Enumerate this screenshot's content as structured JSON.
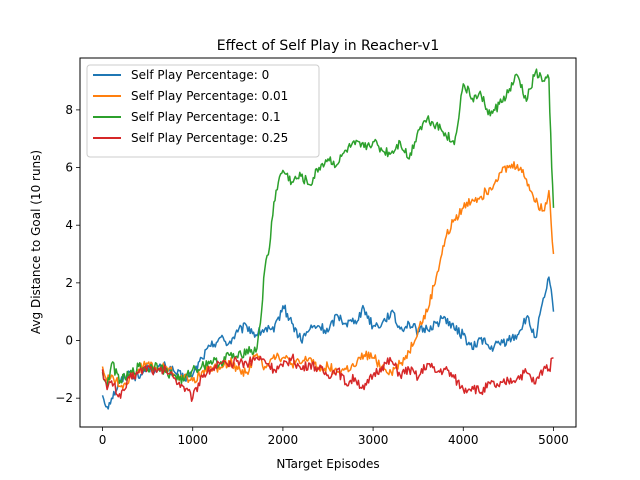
{
  "chart_data": {
    "type": "line",
    "title": "Effect of Self Play in Reacher-v1",
    "xlabel": "NTarget Episodes",
    "ylabel": "Avg Distance to Goal (10 runs)",
    "xlim": [
      -250,
      5250
    ],
    "ylim": [
      -3,
      9.8
    ],
    "xticks": [
      0,
      1000,
      2000,
      3000,
      4000,
      5000
    ],
    "yticks": [
      -2,
      0,
      2,
      4,
      6,
      8
    ],
    "grid": false,
    "legend_position": "upper-left",
    "series": [
      {
        "name": "Self Play Percentage: 0",
        "color": "#1f77b4",
        "x": [
          0,
          50,
          100,
          200,
          300,
          400,
          500,
          600,
          700,
          800,
          900,
          1000,
          1100,
          1200,
          1300,
          1400,
          1500,
          1600,
          1700,
          1800,
          1900,
          2000,
          2100,
          2200,
          2300,
          2400,
          2500,
          2600,
          2700,
          2800,
          2900,
          3000,
          3100,
          3200,
          3300,
          3400,
          3500,
          3600,
          3700,
          3800,
          3900,
          4000,
          4100,
          4200,
          4300,
          4400,
          4500,
          4600,
          4700,
          4800,
          4900,
          4950,
          5000
        ],
        "y": [
          -1.9,
          -2.3,
          -2.0,
          -1.4,
          -1.1,
          -1.3,
          -0.9,
          -1.0,
          -0.9,
          -1.1,
          -1.3,
          -1.2,
          -0.6,
          -0.2,
          0.1,
          -0.1,
          0.3,
          0.5,
          0.2,
          0.4,
          0.3,
          1.2,
          0.6,
          0.0,
          0.4,
          0.5,
          0.3,
          0.9,
          0.6,
          0.7,
          1.1,
          0.5,
          0.6,
          1.0,
          0.4,
          0.6,
          0.3,
          0.4,
          0.6,
          0.8,
          0.4,
          0.2,
          -0.3,
          0.1,
          -0.3,
          -0.1,
          0.0,
          0.2,
          0.8,
          0.1,
          1.5,
          2.2,
          1.0
        ]
      },
      {
        "name": "Self Play Percentage: 0.01",
        "color": "#ff7f0e",
        "x": [
          0,
          50,
          100,
          200,
          300,
          400,
          500,
          600,
          700,
          800,
          900,
          1000,
          1100,
          1200,
          1300,
          1400,
          1500,
          1600,
          1700,
          1800,
          1900,
          2000,
          2100,
          2200,
          2300,
          2400,
          2500,
          2600,
          2700,
          2800,
          2900,
          3000,
          3100,
          3200,
          3300,
          3400,
          3500,
          3600,
          3700,
          3800,
          3900,
          4000,
          4100,
          4200,
          4300,
          4400,
          4500,
          4600,
          4700,
          4800,
          4900,
          4950,
          5000
        ],
        "y": [
          -0.9,
          -1.4,
          -1.2,
          -1.6,
          -1.3,
          -1.0,
          -0.8,
          -1.0,
          -0.9,
          -1.2,
          -1.3,
          -1.4,
          -1.1,
          -0.9,
          -1.0,
          -0.7,
          -1.0,
          -1.1,
          -0.5,
          -0.9,
          -0.5,
          -0.6,
          -0.8,
          -0.8,
          -0.6,
          -1.0,
          -0.9,
          -1.1,
          -1.0,
          -0.9,
          -0.5,
          -0.6,
          -0.9,
          -1.1,
          -0.8,
          -0.4,
          0.4,
          1.0,
          2.2,
          3.5,
          4.2,
          4.6,
          4.9,
          5.0,
          5.3,
          5.8,
          6.0,
          6.1,
          5.6,
          4.8,
          4.5,
          5.2,
          3.0
        ]
      },
      {
        "name": "Self Play Percentage: 0.1",
        "color": "#2ca02c",
        "x": [
          0,
          50,
          100,
          200,
          300,
          400,
          500,
          600,
          700,
          800,
          900,
          1000,
          1100,
          1200,
          1300,
          1400,
          1500,
          1600,
          1700,
          1750,
          1800,
          1850,
          1900,
          1950,
          2000,
          2100,
          2200,
          2300,
          2400,
          2500,
          2600,
          2700,
          2800,
          2900,
          3000,
          3100,
          3200,
          3300,
          3400,
          3500,
          3600,
          3700,
          3800,
          3900,
          4000,
          4100,
          4200,
          4300,
          4400,
          4500,
          4600,
          4700,
          4800,
          4900,
          4950,
          4980,
          5000
        ],
        "y": [
          -1.1,
          -1.6,
          -0.8,
          -1.4,
          -1.2,
          -0.9,
          -1.0,
          -0.8,
          -1.1,
          -1.2,
          -1.4,
          -1.0,
          -0.9,
          -0.7,
          -0.8,
          -0.5,
          -0.6,
          -0.3,
          -0.4,
          0.6,
          2.5,
          3.2,
          4.8,
          5.5,
          5.9,
          5.5,
          5.7,
          5.4,
          6.0,
          6.3,
          6.1,
          6.6,
          6.8,
          6.7,
          6.9,
          6.6,
          6.5,
          6.9,
          6.3,
          7.3,
          7.7,
          7.5,
          7.2,
          6.8,
          8.9,
          8.4,
          8.5,
          7.8,
          8.2,
          8.6,
          9.2,
          8.3,
          9.3,
          9.0,
          9.1,
          6.0,
          4.6
        ]
      },
      {
        "name": "Self Play Percentage: 0.25",
        "color": "#d62728",
        "x": [
          0,
          50,
          100,
          200,
          300,
          400,
          500,
          600,
          700,
          800,
          900,
          1000,
          1100,
          1200,
          1300,
          1400,
          1500,
          1600,
          1700,
          1800,
          1900,
          2000,
          2100,
          2200,
          2300,
          2400,
          2500,
          2600,
          2700,
          2800,
          2900,
          3000,
          3100,
          3200,
          3300,
          3400,
          3500,
          3600,
          3700,
          3800,
          3900,
          4000,
          4100,
          4200,
          4300,
          4400,
          4500,
          4600,
          4700,
          4800,
          4900,
          4950,
          5000
        ],
        "y": [
          -1.0,
          -1.7,
          -1.4,
          -2.0,
          -1.3,
          -1.1,
          -0.9,
          -1.1,
          -1.0,
          -1.3,
          -1.6,
          -2.0,
          -1.2,
          -1.0,
          -0.8,
          -0.9,
          -0.7,
          -0.8,
          -0.6,
          -0.7,
          -1.0,
          -0.9,
          -0.6,
          -1.0,
          -0.8,
          -1.0,
          -1.2,
          -1.0,
          -1.5,
          -1.3,
          -1.7,
          -1.2,
          -0.9,
          -0.7,
          -1.2,
          -1.0,
          -1.3,
          -0.8,
          -1.1,
          -1.0,
          -1.3,
          -1.7,
          -1.6,
          -1.8,
          -1.5,
          -1.6,
          -1.4,
          -1.3,
          -1.1,
          -1.5,
          -0.9,
          -1.0,
          -0.6
        ]
      }
    ]
  }
}
